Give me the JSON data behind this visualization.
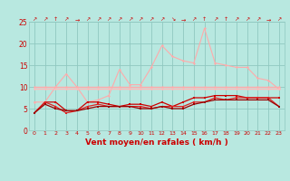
{
  "x": [
    0,
    1,
    2,
    3,
    4,
    5,
    6,
    7,
    8,
    9,
    10,
    11,
    12,
    13,
    14,
    15,
    16,
    17,
    18,
    19,
    20,
    21,
    22,
    23
  ],
  "line_spiky": [
    6.5,
    6.5,
    10.0,
    13.0,
    10.0,
    6.5,
    7.0,
    8.0,
    14.0,
    10.5,
    10.5,
    14.5,
    19.5,
    17.0,
    16.0,
    15.5,
    23.5,
    15.5,
    15.0,
    14.5,
    14.5,
    12.0,
    11.5,
    9.5
  ],
  "line_flat_a": [
    10.0,
    10.0,
    10.0,
    10.0,
    10.0,
    10.0,
    10.0,
    10.0,
    10.0,
    10.0,
    10.0,
    10.0,
    10.0,
    10.0,
    10.0,
    10.0,
    10.0,
    10.0,
    10.0,
    10.0,
    10.0,
    10.0,
    10.0,
    10.0
  ],
  "line_flat_b": [
    9.5,
    9.5,
    9.5,
    9.5,
    9.5,
    9.5,
    9.5,
    9.5,
    9.5,
    9.5,
    9.5,
    9.5,
    9.5,
    9.5,
    9.5,
    9.5,
    9.5,
    9.5,
    9.5,
    9.5,
    9.5,
    9.5,
    9.5,
    9.5
  ],
  "line_dark1": [
    4.0,
    6.5,
    6.5,
    4.5,
    4.5,
    6.5,
    6.5,
    6.0,
    5.5,
    6.0,
    6.0,
    5.5,
    6.5,
    5.5,
    6.5,
    7.5,
    7.5,
    8.0,
    8.0,
    8.0,
    7.5,
    7.5,
    7.5,
    7.5
  ],
  "line_dark2": [
    4.0,
    6.5,
    5.5,
    4.0,
    4.5,
    5.5,
    6.0,
    5.5,
    5.5,
    5.5,
    5.5,
    5.0,
    5.5,
    5.5,
    5.5,
    6.5,
    6.5,
    7.5,
    7.0,
    7.5,
    7.5,
    7.5,
    7.5,
    5.5
  ],
  "line_dark3": [
    4.0,
    6.0,
    5.0,
    4.5,
    4.5,
    5.0,
    5.5,
    5.5,
    5.5,
    5.5,
    5.0,
    5.0,
    5.5,
    5.0,
    5.0,
    6.0,
    6.5,
    7.0,
    7.0,
    7.0,
    7.0,
    7.0,
    7.0,
    5.5
  ],
  "arrows": [
    "↗",
    "↗",
    "↑",
    "↗",
    "→",
    "↗",
    "↗",
    "↗",
    "↗",
    "↗",
    "↗",
    "↗",
    "↗",
    "↘",
    "→",
    "↗",
    "↑",
    "↗",
    "↑",
    "↗",
    "↗",
    "↗",
    "→",
    "↗"
  ],
  "xlabel": "Vent moyen/en rafales ( km/h )",
  "bg_color": "#b8e8e0",
  "grid_color": "#90c8c0",
  "color_spiky": "#ffaaaa",
  "color_flat_a": "#ffaaaa",
  "color_flat_b": "#ffbbbb",
  "color_dark1": "#cc0000",
  "color_dark2": "#dd2222",
  "color_dark3": "#990000",
  "ylim": [
    0,
    25
  ],
  "yticks": [
    0,
    5,
    10,
    15,
    20,
    25
  ]
}
